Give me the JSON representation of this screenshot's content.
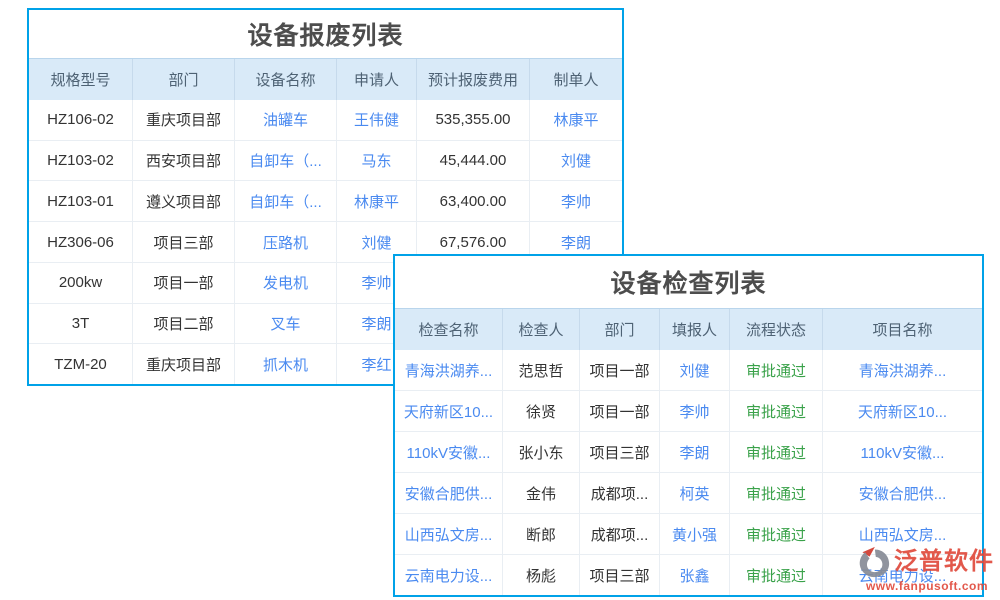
{
  "colors": {
    "border": "#00a2e8",
    "header_bg": "#d9eaf8",
    "header_text": "#4e6274",
    "title_text": "#4d4d4d",
    "text": "#333333",
    "link": "#4a8af0",
    "status_green": "#3aa24a",
    "watermark_red": "#e04a3c"
  },
  "scrap_table": {
    "title": "设备报废列表",
    "columns": [
      "规格型号",
      "部门",
      "设备名称",
      "申请人",
      "预计报废费用",
      "制单人"
    ],
    "col_types": [
      "plain",
      "plain",
      "link",
      "link",
      "plain",
      "link"
    ],
    "rows": [
      [
        "HZ106-02",
        "重庆项目部",
        "油罐车",
        "王伟健",
        "535,355.00",
        "林康平"
      ],
      [
        "HZ103-02",
        "西安项目部",
        "自卸车（...",
        "马东",
        "45,444.00",
        "刘健"
      ],
      [
        "HZ103-01",
        "遵义项目部",
        "自卸车（...",
        "林康平",
        "63,400.00",
        "李帅"
      ],
      [
        "HZ306-06",
        "项目三部",
        "压路机",
        "刘健",
        "67,576.00",
        "李朗"
      ],
      [
        "200kw",
        "项目一部",
        "发电机",
        "李帅",
        "",
        ""
      ],
      [
        "3T",
        "项目二部",
        "叉车",
        "李朗",
        "",
        ""
      ],
      [
        "TZM-20",
        "重庆项目部",
        "抓木机",
        "李红",
        "",
        ""
      ]
    ]
  },
  "inspection_table": {
    "title": "设备检查列表",
    "columns": [
      "检查名称",
      "检查人",
      "部门",
      "填报人",
      "流程状态",
      "项目名称"
    ],
    "col_types": [
      "link",
      "plain",
      "plain",
      "link",
      "status",
      "link"
    ],
    "rows": [
      [
        "青海洪湖养...",
        "范思哲",
        "项目一部",
        "刘健",
        "审批通过",
        "青海洪湖养..."
      ],
      [
        "天府新区10...",
        "徐贤",
        "项目一部",
        "李帅",
        "审批通过",
        "天府新区10..."
      ],
      [
        "110kV安徽...",
        "张小东",
        "项目三部",
        "李朗",
        "审批通过",
        "110kV安徽..."
      ],
      [
        "安徽合肥供...",
        "金伟",
        "成都项...",
        "柯英",
        "审批通过",
        "安徽合肥供..."
      ],
      [
        "山西弘文房...",
        "断郎",
        "成都项...",
        "黄小强",
        "审批通过",
        "山西弘文房..."
      ],
      [
        "云南电力设...",
        "杨彪",
        "项目三部",
        "张鑫",
        "审批通过",
        "云南电力设..."
      ]
    ]
  },
  "watermark": {
    "brand": "泛普软件",
    "url": "www.fanpusoft.com",
    "logo_icon": "fanpu-logo-icon"
  }
}
